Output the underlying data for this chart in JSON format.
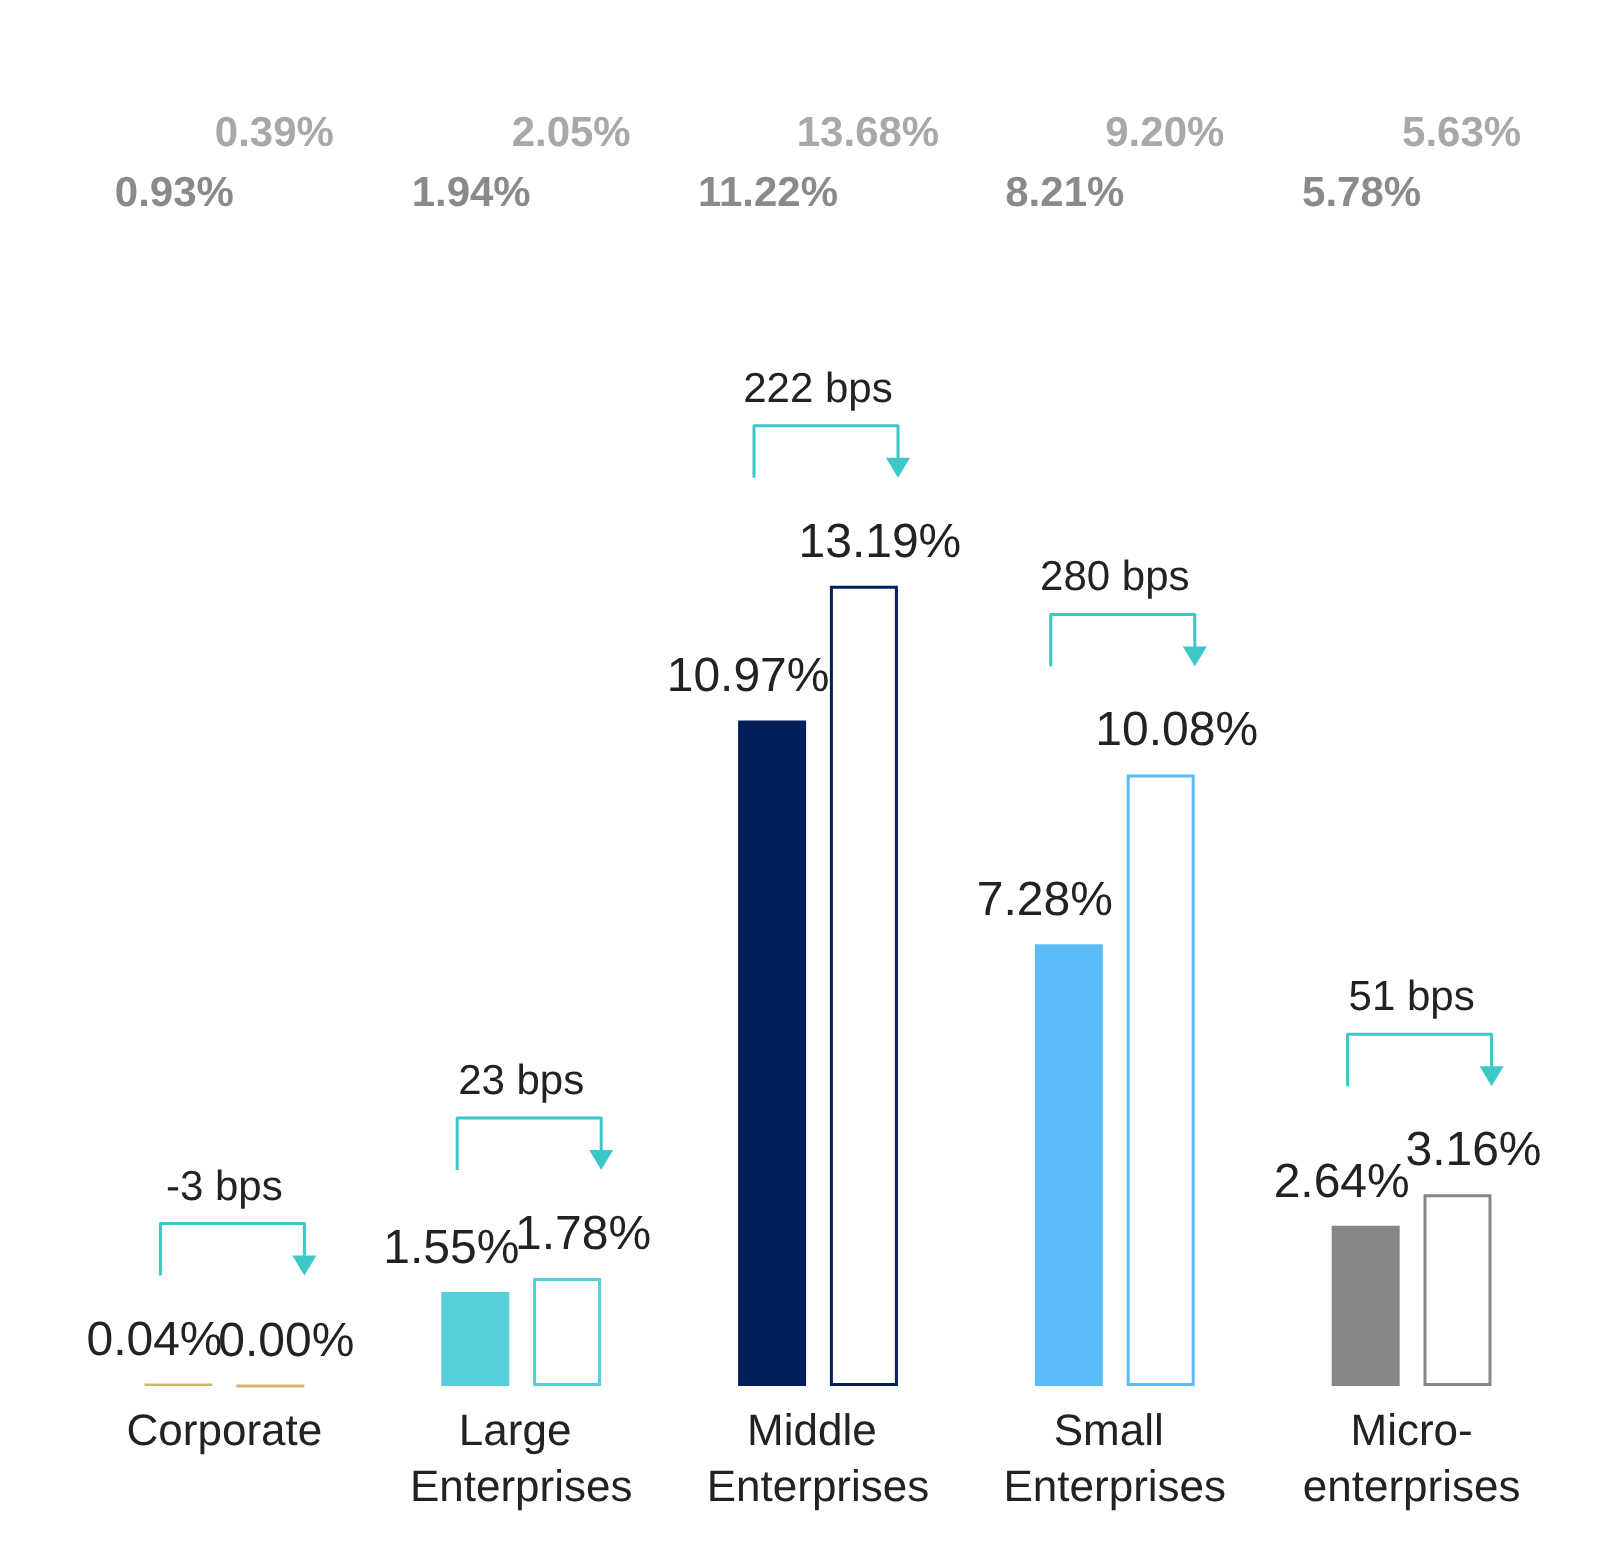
{
  "chart_data": {
    "type": "bar",
    "categories": [
      "Corporate",
      "Large Enterprises",
      "Middle Enterprises",
      "Small Enterprises",
      "Micro-enterprises"
    ],
    "series": [
      {
        "colors": [
          "#d4b46a",
          "#55d0d8",
          "#001f5b",
          "#5bbcf8",
          "#878787"
        ],
        "values": [
          0.04,
          1.55,
          10.97,
          7.28,
          2.64
        ],
        "value_labels": [
          "0.04%",
          "1.55%",
          "10.97%",
          "7.28%",
          "2.64%"
        ]
      },
      {
        "colors": [
          "#d4b46a",
          "#55d0d8",
          "#001f5b",
          "#5bbcf8",
          "#878787"
        ],
        "values": [
          0.0,
          1.78,
          13.19,
          10.08,
          3.16
        ],
        "value_labels": [
          "0.00%",
          "1.78%",
          "13.19%",
          "10.08%",
          "3.16%"
        ]
      }
    ],
    "annotations": [
      "0.39%",
      "0.93%",
      "-3 bps",
      "2.05%",
      "1.94%",
      "23 bps",
      "13.68%",
      "11.22%",
      "222 bps",
      "9.20%",
      "8.21%",
      "280 bps",
      "5.63%",
      "5.78%",
      "51 bps"
    ],
    "tick_labels": "x"
  }
}
